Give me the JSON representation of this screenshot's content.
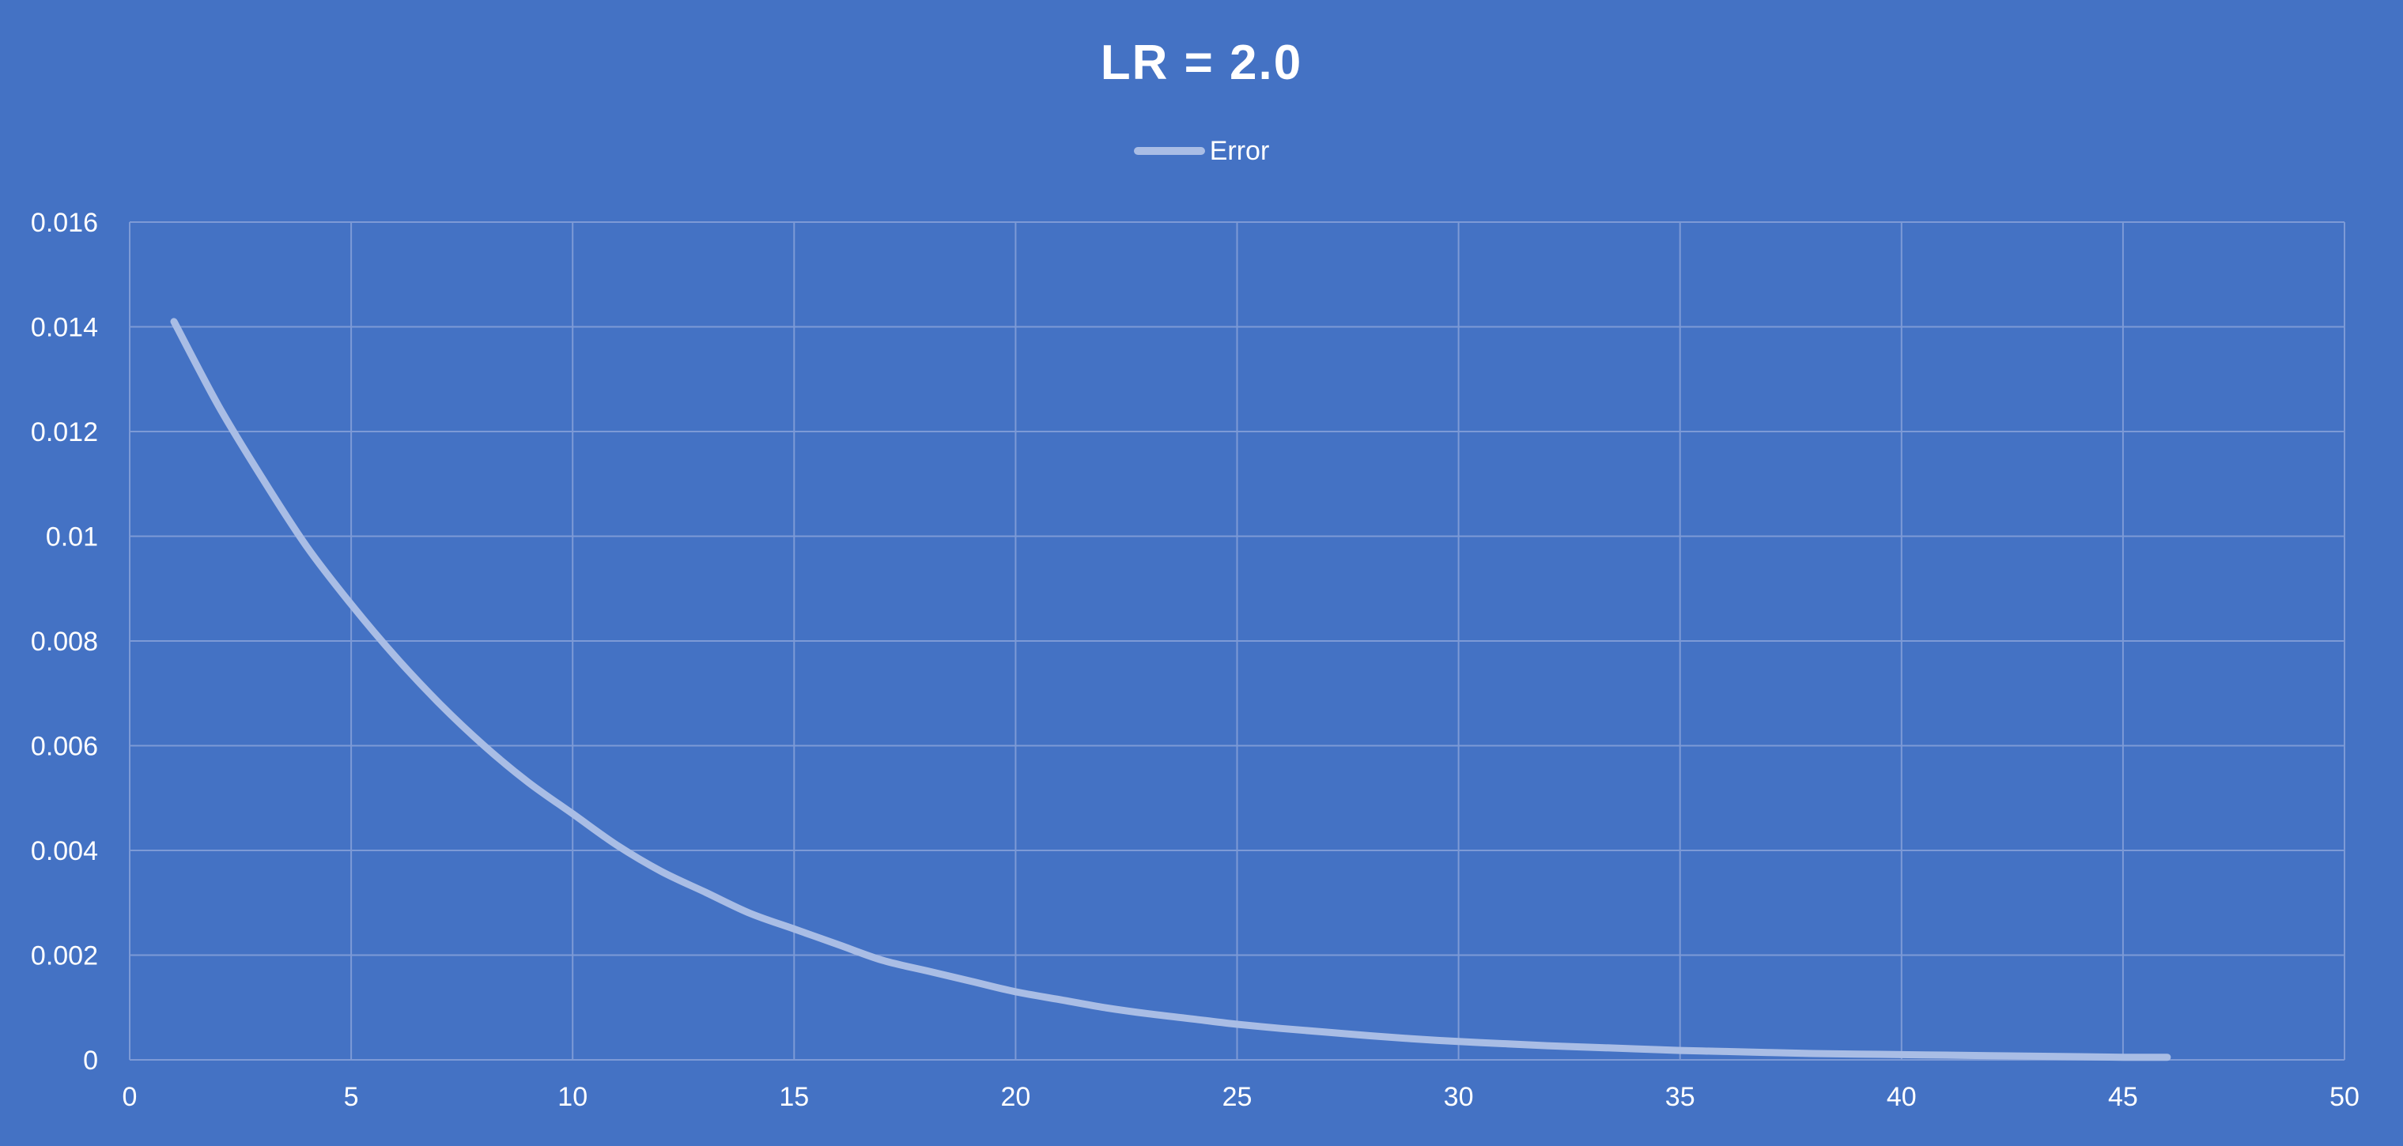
{
  "chart_data": {
    "type": "line",
    "title": "LR = 2.0",
    "xlabel": "",
    "ylabel": "",
    "xlim": [
      0,
      50
    ],
    "ylim": [
      0,
      0.016
    ],
    "x_ticks": [
      "0",
      "5",
      "10",
      "15",
      "20",
      "25",
      "30",
      "35",
      "40",
      "45",
      "50"
    ],
    "y_ticks": [
      "0",
      "0.002",
      "0.004",
      "0.006",
      "0.008",
      "0.01",
      "0.012",
      "0.014",
      "0.016"
    ],
    "grid": true,
    "legend_position": "top",
    "series": [
      {
        "name": "Error",
        "color": "#a9bde5",
        "x": [
          1,
          2,
          3,
          4,
          5,
          6,
          7,
          8,
          9,
          10,
          11,
          12,
          13,
          14,
          15,
          16,
          17,
          18,
          19,
          20,
          21,
          22,
          23,
          24,
          25,
          26,
          27,
          28,
          29,
          30,
          31,
          32,
          33,
          34,
          35,
          36,
          37,
          38,
          39,
          40,
          41,
          42,
          43,
          44,
          45,
          46
        ],
        "y": [
          0.0141,
          0.0125,
          0.0111,
          0.0098,
          0.0087,
          0.0077,
          0.0068,
          0.006,
          0.0053,
          0.0047,
          0.0041,
          0.0036,
          0.0032,
          0.0028,
          0.0025,
          0.0022,
          0.0019,
          0.0017,
          0.0015,
          0.0013,
          0.00115,
          0.001,
          0.00088,
          0.00078,
          0.00068,
          0.0006,
          0.00053,
          0.00046,
          0.0004,
          0.00035,
          0.00031,
          0.00027,
          0.00024,
          0.00021,
          0.00018,
          0.00016,
          0.00014,
          0.00012,
          0.00011,
          0.0001,
          9e-05,
          8e-05,
          7e-05,
          6e-05,
          5e-05,
          5e-05
        ]
      }
    ]
  },
  "colors": {
    "background": "#4472c4",
    "gridline": "#7d9ad6",
    "text": "#ffffff"
  }
}
